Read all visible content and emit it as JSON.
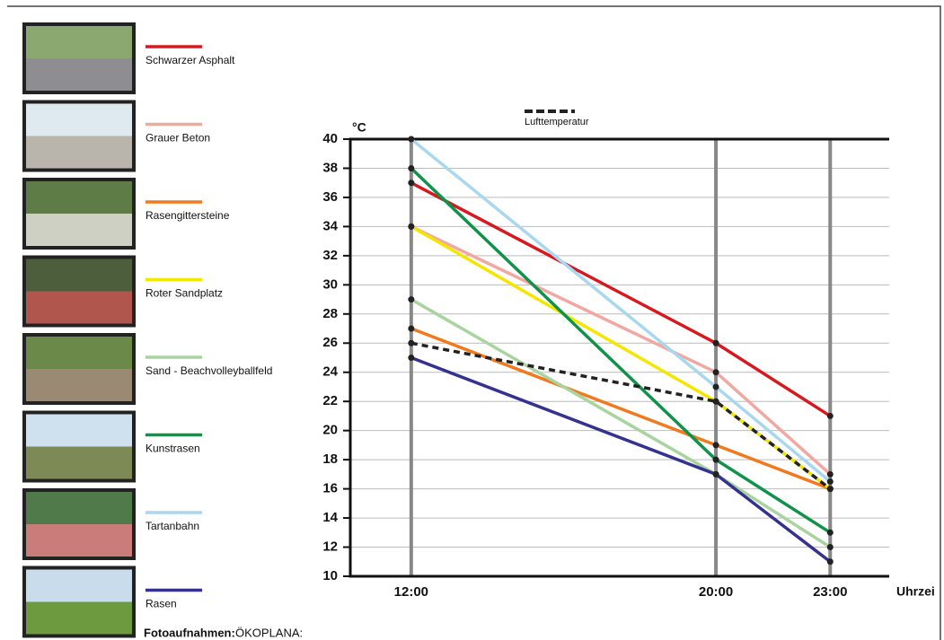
{
  "chart_data": {
    "type": "line",
    "y_label": "°C",
    "x_label": "Uhrzei",
    "x": [
      12,
      20,
      23
    ],
    "xlim": [
      10.4,
      24.55
    ],
    "xticks": [
      {
        "value": 12,
        "label": "12:00"
      },
      {
        "value": 20,
        "label": "20:00"
      },
      {
        "value": 23,
        "label": "23:00"
      }
    ],
    "ylim": [
      10,
      40
    ],
    "yticks": [
      10,
      12,
      14,
      16,
      18,
      20,
      22,
      24,
      26,
      28,
      30,
      32,
      34,
      36,
      38,
      40
    ],
    "grid": true,
    "series": [
      {
        "name": "Schwarzer Asphalt",
        "color": "#d7191f",
        "values": [
          37,
          26,
          21
        ]
      },
      {
        "name": "Grauer Beton",
        "color": "#f0a8a0",
        "values": [
          34,
          24,
          17
        ]
      },
      {
        "name": "Rasengittersteine",
        "color": "#f07a1e",
        "values": [
          27,
          19,
          16
        ]
      },
      {
        "name": "Roter Sandplatz",
        "color": "#f5e600",
        "values": [
          34,
          22,
          16
        ]
      },
      {
        "name": "Sand - Beachvolleyballfeld",
        "color": "#a9d4a0",
        "values": [
          29,
          17,
          12
        ]
      },
      {
        "name": "Kunstrasen",
        "color": "#10924a",
        "values": [
          38,
          18,
          13
        ]
      },
      {
        "name": "Tartanbahn",
        "color": "#a9d8ee",
        "values": [
          40,
          23,
          16.5
        ]
      },
      {
        "name": "Rasen",
        "color": "#34318f",
        "values": [
          25,
          17,
          11
        ]
      },
      {
        "name": "Lufttemperatur",
        "color": "#222222",
        "dashed": true,
        "values": [
          26,
          22,
          16
        ]
      }
    ]
  },
  "footer": {
    "label": "Fotoaufnahmen:",
    "source": "ÖKOPLANA:"
  }
}
